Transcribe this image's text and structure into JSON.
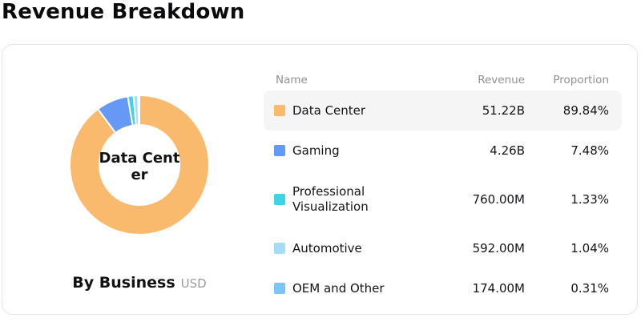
{
  "header": {
    "title": "Revenue Breakdown"
  },
  "chart_data": {
    "type": "pie",
    "variant": "donut",
    "title": "By Business",
    "unit_label": "USD",
    "center_label": "Data Center",
    "center_label_lines": [
      "Data Cent",
      "er"
    ],
    "legend_position": "right-table",
    "slices": [
      {
        "label": "Data Center",
        "revenue": "51.22B",
        "proportion_label": "89.84%",
        "proportion_pct": 89.84,
        "color": "#FABA6E"
      },
      {
        "label": "Gaming",
        "revenue": "4.26B",
        "proportion_label": "7.48%",
        "proportion_pct": 7.48,
        "color": "#6699F6"
      },
      {
        "label": "Professional Visualization",
        "revenue": "760.00M",
        "proportion_label": "1.33%",
        "proportion_pct": 1.33,
        "color": "#3FD3E5"
      },
      {
        "label": "Automotive",
        "revenue": "592.00M",
        "proportion_label": "1.04%",
        "proportion_pct": 1.04,
        "color": "#A5DCF8"
      },
      {
        "label": "OEM and Other",
        "revenue": "174.00M",
        "proportion_label": "0.31%",
        "proportion_pct": 0.31,
        "color": "#7CC5F8"
      }
    ]
  },
  "table": {
    "headers": {
      "name": "Name",
      "revenue": "Revenue",
      "proportion": "Proportion"
    }
  },
  "colors": {
    "row_highlight": "#f5f5f6",
    "card_border": "#e4e3ea",
    "header_text": "#8f8f96"
  }
}
